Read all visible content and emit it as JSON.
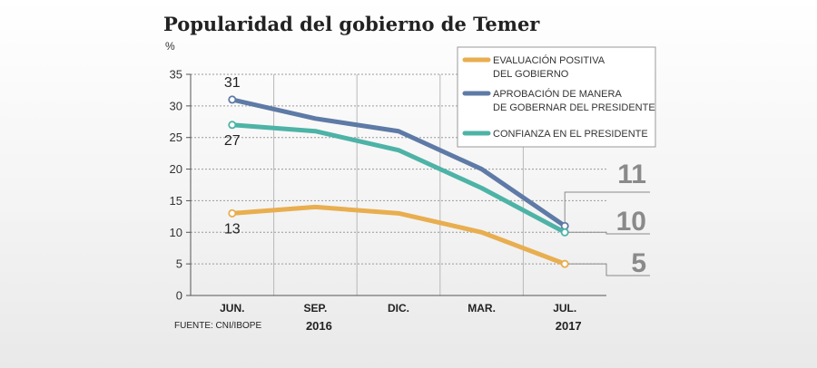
{
  "chart_data": {
    "type": "line",
    "title": "Popularidad del gobierno de Temer",
    "unit": "%",
    "categories": [
      "JUN.",
      "SEP.",
      "DIC.",
      "MAR.",
      "JUL."
    ],
    "years": [
      {
        "label": "2016",
        "category_index": 1
      },
      {
        "label": "2017",
        "category_index": 4
      }
    ],
    "ylim": [
      0,
      35
    ],
    "yticks": [
      0,
      5,
      10,
      15,
      20,
      25,
      30,
      35
    ],
    "grid": true,
    "legend_position": "top-right",
    "series": [
      {
        "name": "EVALUACIÓN POSITIVA DEL GOBIERNO",
        "legend_lines": [
          "EVALUACIÓN POSITIVA",
          "DEL GOBIERNO"
        ],
        "color": "#e8ae4f",
        "values": [
          13,
          14,
          13,
          10,
          5
        ],
        "start_label": "13",
        "end_label": "5"
      },
      {
        "name": "APROBACIÓN DE MANERA DE GOBERNAR DEL PRESIDENTE",
        "legend_lines": [
          "APROBACIÓN DE MANERA",
          "DE GOBERNAR DEL PRESIDENTE"
        ],
        "color": "#5e7aa6",
        "values": [
          31,
          28,
          26,
          20,
          11
        ],
        "start_label": "31",
        "end_label": "11"
      },
      {
        "name": "CONFIANZA EN EL PRESIDENTE",
        "legend_lines": [
          "CONFIANZA EN EL PRESIDENTE"
        ],
        "color": "#4db3a6",
        "values": [
          27,
          26,
          23,
          17,
          10
        ],
        "start_label": "27",
        "end_label": "10"
      }
    ],
    "source": "FUENTE: CNI/IBOPE"
  }
}
